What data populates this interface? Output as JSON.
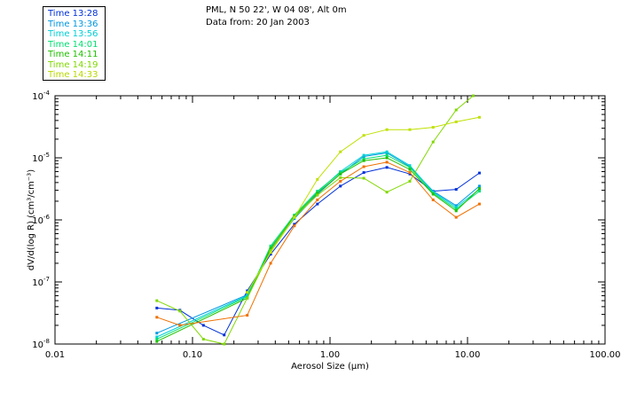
{
  "header": {
    "title": "PML, N 50 22', W 04 08', Alt 0m",
    "subtitle": "Data from: 20 Jan 2003"
  },
  "chart_data": {
    "type": "line",
    "xlabel": "Aerosol Size (μm)",
    "ylabel": "dV/d(log R) (cm³/cm⁻³)",
    "x_scale": "log",
    "y_scale": "log",
    "xlim": [
      0.01,
      100
    ],
    "ylim": [
      1e-08,
      0.0001
    ],
    "x_ticks": [
      {
        "value": 0.01,
        "label": "0.01"
      },
      {
        "value": 0.1,
        "label": "0.10"
      },
      {
        "value": 1,
        "label": "1.00"
      },
      {
        "value": 10,
        "label": "10.00"
      },
      {
        "value": 100,
        "label": "100.00"
      }
    ],
    "y_ticks": [
      {
        "value": 1e-08,
        "base": "10",
        "exp": "-8"
      },
      {
        "value": 1e-07,
        "base": "10",
        "exp": "-7"
      },
      {
        "value": 1e-06,
        "base": "10",
        "exp": "-6"
      },
      {
        "value": 1e-05,
        "base": "10",
        "exp": "-5"
      },
      {
        "value": 0.0001,
        "base": "10",
        "exp": "-4"
      }
    ],
    "grid": false,
    "legend_position": "top-left, outside",
    "series": [
      {
        "name": "Time 13:28",
        "color": "#0030d8",
        "points": [
          [
            0.055,
            3.8e-08
          ],
          [
            0.081,
            3.5e-08
          ],
          [
            0.12,
            2e-08
          ],
          [
            0.17,
            1.4e-08
          ],
          [
            0.25,
            7.2e-08
          ],
          [
            0.37,
            2.8e-07
          ],
          [
            0.55,
            8.5e-07
          ],
          [
            0.81,
            1.8e-06
          ],
          [
            1.19,
            3.5e-06
          ],
          [
            1.76,
            5.8e-06
          ],
          [
            2.59,
            7e-06
          ],
          [
            3.81,
            5.5e-06
          ],
          [
            5.62,
            2.9e-06
          ],
          [
            8.27,
            3.1e-06
          ],
          [
            12.2,
            5.7e-06
          ]
        ]
      },
      {
        "name": "Time 13:36",
        "color": "#0098e0",
        "points": [
          [
            0.055,
            1.5e-08
          ],
          [
            0.25,
            6.2e-08
          ],
          [
            0.37,
            3.3e-07
          ],
          [
            0.55,
            1.05e-06
          ],
          [
            0.81,
            2.6e-06
          ],
          [
            1.19,
            5.5e-06
          ],
          [
            1.76,
            1.05e-05
          ],
          [
            2.59,
            1.2e-05
          ],
          [
            3.81,
            7.2e-06
          ],
          [
            5.62,
            2.9e-06
          ],
          [
            8.27,
            1.7e-06
          ],
          [
            12.2,
            3.5e-06
          ]
        ]
      },
      {
        "name": "Time 13:56",
        "color": "#00d0d8",
        "points": [
          [
            0.055,
            1.3e-08
          ],
          [
            0.25,
            6e-08
          ],
          [
            0.37,
            3.6e-07
          ],
          [
            0.55,
            1.1e-06
          ],
          [
            0.81,
            2.8e-06
          ],
          [
            1.19,
            6e-06
          ],
          [
            1.76,
            1.1e-05
          ],
          [
            2.59,
            1.25e-05
          ],
          [
            3.81,
            7.5e-06
          ],
          [
            5.62,
            2.8e-06
          ],
          [
            8.27,
            1.6e-06
          ],
          [
            12.2,
            3.1e-06
          ]
        ]
      },
      {
        "name": "Time 14:01",
        "color": "#00e070",
        "points": [
          [
            0.055,
            1.2e-08
          ],
          [
            0.25,
            5.8e-08
          ],
          [
            0.37,
            3.8e-07
          ],
          [
            0.55,
            1.2e-06
          ],
          [
            0.81,
            2.9e-06
          ],
          [
            1.19,
            5.8e-06
          ],
          [
            1.76,
            9.6e-06
          ],
          [
            2.59,
            1.1e-05
          ],
          [
            3.81,
            7e-06
          ],
          [
            5.62,
            2.7e-06
          ],
          [
            8.27,
            1.5e-06
          ],
          [
            12.2,
            2.9e-06
          ]
        ]
      },
      {
        "name": "Time 14:11",
        "color": "#20c000",
        "points": [
          [
            0.055,
            1.1e-08
          ],
          [
            0.25,
            5.5e-08
          ],
          [
            0.37,
            3.5e-07
          ],
          [
            0.55,
            1.15e-06
          ],
          [
            0.81,
            2.7e-06
          ],
          [
            1.19,
            5.5e-06
          ],
          [
            1.76,
            9e-06
          ],
          [
            2.59,
            1e-05
          ],
          [
            3.81,
            6.5e-06
          ],
          [
            5.62,
            2.6e-06
          ],
          [
            8.27,
            1.4e-06
          ],
          [
            12.2,
            3.2e-06
          ]
        ]
      },
      {
        "name": "Time 14:19",
        "color": "#80d800",
        "points": [
          [
            0.055,
            5e-08
          ],
          [
            0.081,
            3.4e-08
          ],
          [
            0.12,
            1.2e-08
          ],
          [
            0.17,
            1e-08
          ],
          [
            0.25,
            5.5e-08
          ],
          [
            0.37,
            3.2e-07
          ],
          [
            0.55,
            1.1e-06
          ],
          [
            0.81,
            2.5e-06
          ],
          [
            1.19,
            4.8e-06
          ],
          [
            1.76,
            4.7e-06
          ],
          [
            2.59,
            2.8e-06
          ],
          [
            3.81,
            4.2e-06
          ],
          [
            5.62,
            1.8e-05
          ],
          [
            8.27,
            5.9e-05
          ],
          [
            11,
            0.0001
          ]
        ]
      },
      {
        "name": "Time 14:33",
        "color": "#c0e000",
        "points": [
          [
            0.25,
            6.8e-08
          ],
          [
            0.37,
            3e-07
          ],
          [
            0.55,
            1.1e-06
          ],
          [
            0.81,
            4.5e-06
          ],
          [
            1.19,
            1.25e-05
          ],
          [
            1.76,
            2.3e-05
          ],
          [
            2.59,
            2.85e-05
          ],
          [
            3.81,
            2.85e-05
          ],
          [
            5.62,
            3.1e-05
          ],
          [
            8.27,
            3.8e-05
          ],
          [
            12.2,
            4.5e-05
          ]
        ]
      },
      {
        "name": "",
        "color": "#f07000",
        "points": [
          [
            0.055,
            2.7e-08
          ],
          [
            0.081,
            2e-08
          ],
          [
            0.25,
            2.9e-08
          ],
          [
            0.37,
            2e-07
          ],
          [
            0.55,
            8e-07
          ],
          [
            0.81,
            2.1e-06
          ],
          [
            1.19,
            4.2e-06
          ],
          [
            1.76,
            7.2e-06
          ],
          [
            2.59,
            8.5e-06
          ],
          [
            3.81,
            5.8e-06
          ],
          [
            5.62,
            2.1e-06
          ],
          [
            8.27,
            1.1e-06
          ],
          [
            12.2,
            1.8e-06
          ]
        ]
      }
    ]
  }
}
